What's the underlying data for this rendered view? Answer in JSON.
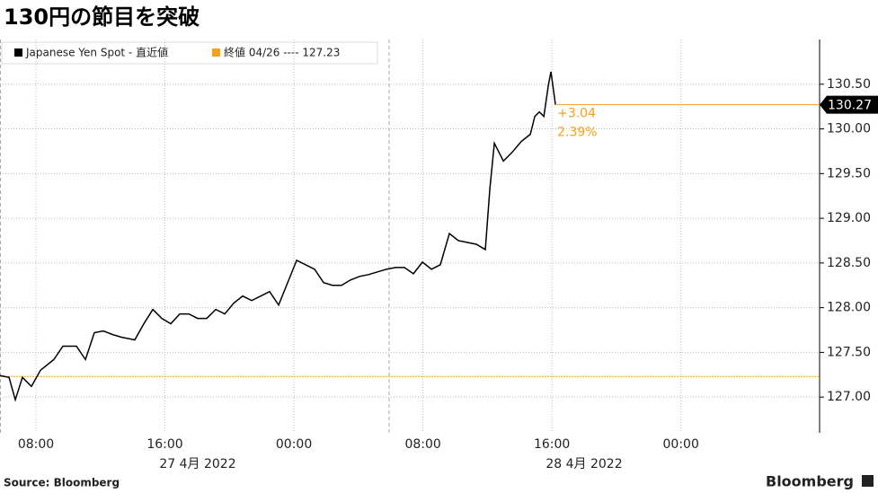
{
  "chart_data": {
    "type": "line",
    "title": "130円の節目を突破",
    "series": [
      {
        "name": "Japanese Yen Spot - 直近値",
        "color": "#000000",
        "x": [
          5.77,
          6.33,
          6.72,
          7.16,
          7.72,
          8.28,
          9.11,
          9.67,
          10.51,
          11.07,
          11.62,
          12.18,
          12.74,
          13.3,
          14.13,
          14.69,
          15.25,
          15.8,
          16.36,
          16.92,
          17.48,
          18.03,
          18.59,
          19.15,
          19.71,
          20.26,
          20.82,
          21.38,
          21.94,
          22.49,
          23.05,
          23.61,
          24.17,
          24.72,
          25.28,
          25.84,
          26.39,
          26.95,
          27.51,
          28.07,
          28.62,
          29.18,
          29.74,
          30.3,
          30.85,
          31.41,
          31.97,
          32.53,
          33.08,
          33.64,
          34.2,
          34.76,
          35.31,
          35.87,
          36.15,
          36.43,
          36.99,
          37.54,
          38.1,
          38.66,
          38.94,
          39.22,
          39.5,
          39.78,
          39.94,
          40.22
        ],
        "values": [
          127.24,
          127.22,
          126.97,
          127.22,
          127.12,
          127.3,
          127.42,
          127.57,
          127.57,
          127.42,
          127.72,
          127.74,
          127.7,
          127.67,
          127.64,
          127.82,
          127.98,
          127.88,
          127.82,
          127.93,
          127.93,
          127.88,
          127.88,
          127.98,
          127.93,
          128.05,
          128.13,
          128.08,
          128.13,
          128.18,
          128.03,
          128.28,
          128.53,
          128.48,
          128.43,
          128.28,
          128.25,
          128.25,
          128.31,
          128.35,
          128.37,
          128.4,
          128.43,
          128.45,
          128.45,
          128.38,
          128.51,
          128.43,
          128.48,
          128.83,
          128.75,
          128.73,
          128.71,
          128.65,
          129.33,
          129.84,
          129.64,
          129.74,
          129.86,
          129.94,
          130.14,
          130.19,
          130.14,
          130.49,
          130.64,
          130.27
        ]
      }
    ],
    "reference": {
      "name": "終値 04/26 ---- 127.23",
      "value": 127.23,
      "color": "#f5a01a"
    },
    "annotations": [
      "+3.04",
      "2.39%"
    ],
    "date_labels": [
      "27 4月  2022",
      "28 4月  2022"
    ],
    "xlim": [
      5.77,
      56.6
    ],
    "xticks": [
      {
        "value": 8,
        "label": "08:00"
      },
      {
        "value": 16,
        "label": "16:00"
      },
      {
        "value": 24,
        "label": "00:00"
      },
      {
        "value": 32,
        "label": "08:00"
      },
      {
        "value": 40,
        "label": "16:00"
      },
      {
        "value": 48,
        "label": "00:00"
      }
    ],
    "ylim": [
      126.6,
      131.0
    ],
    "yticks": [
      {
        "value": 127,
        "label": "127.00"
      },
      {
        "value": 127.5,
        "label": "127.50"
      },
      {
        "value": 128,
        "label": "128.00"
      },
      {
        "value": 128.5,
        "label": "128.50"
      },
      {
        "value": 129,
        "label": "129.00"
      },
      {
        "value": 129.5,
        "label": "129.50"
      },
      {
        "value": 130,
        "label": "130.00"
      },
      {
        "value": 130.5,
        "label": "130.50"
      }
    ],
    "grid": true,
    "source": "Source:  Bloomberg",
    "brand": "Bloomberg"
  }
}
